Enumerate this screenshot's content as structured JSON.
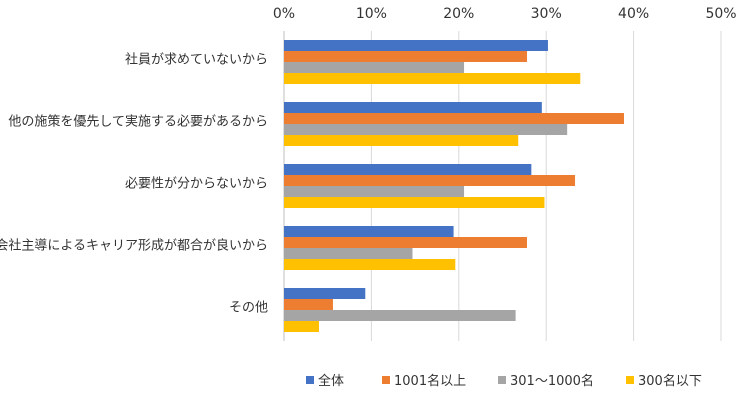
{
  "chart_data": {
    "type": "bar",
    "orientation": "horizontal",
    "categories": [
      "社員が求めていないから",
      "他の施策を優先して実施する必要があるから",
      "必要性が分からないから",
      "会社主導によるキャリア形成が都合が良いから",
      "その他"
    ],
    "series": [
      {
        "name": "全体",
        "color": "#4472C4",
        "values": [
          30.2,
          29.5,
          28.3,
          19.4,
          9.3
        ]
      },
      {
        "name": "1001名以上",
        "color": "#ED7D31",
        "values": [
          27.8,
          38.9,
          33.3,
          27.8,
          5.6
        ]
      },
      {
        "name": "301～1000名",
        "color": "#A5A5A5",
        "values": [
          20.6,
          32.4,
          20.6,
          14.7,
          26.5
        ]
      },
      {
        "name": "300名以下",
        "color": "#FFC000",
        "values": [
          33.9,
          26.8,
          29.8,
          19.6,
          4.0
        ]
      }
    ],
    "xlim": [
      0,
      50
    ],
    "xticks": [
      0,
      10,
      20,
      30,
      40,
      50
    ],
    "tick_format": "%",
    "xaxis_position": "top",
    "grid": true,
    "legend_position": "bottom"
  }
}
